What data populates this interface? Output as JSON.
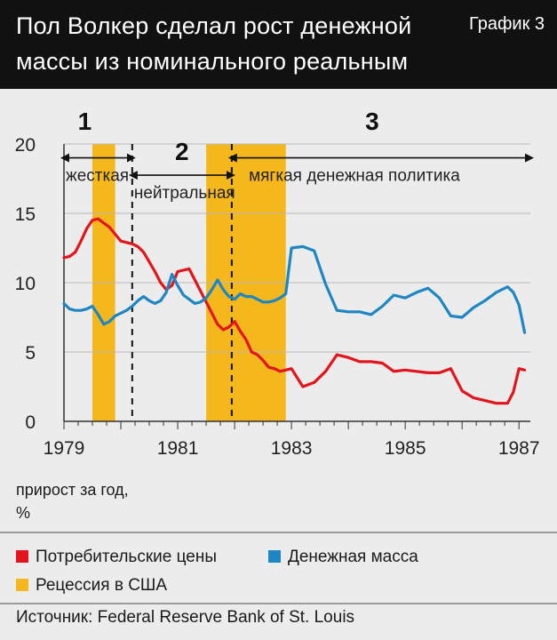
{
  "header": {
    "title_line1": "Пол Волкер сделал рост денежной",
    "title_line2": "массы из номинального реальным",
    "badge": "График 3"
  },
  "unit_label_line1": "прирост за год,",
  "unit_label_line2": "%",
  "legend": {
    "cpi": "Потребительские цены",
    "money": "Денежная масса",
    "recession": "Рецессия в США"
  },
  "source": "Источник: Federal Reserve Bank of St. Louis",
  "colors": {
    "cpi": "#e3141b",
    "money": "#1f86c4",
    "recession": "#f5b81c",
    "header_bg": "#111111",
    "page_bg": "#ececec"
  },
  "chart_data": {
    "type": "line",
    "xlim": [
      1979,
      1987.2
    ],
    "ylim": [
      0,
      20
    ],
    "xticks": [
      "1979",
      "1981",
      "1983",
      "1985",
      "1987"
    ],
    "yticks": [
      "0",
      "5",
      "10",
      "15",
      "20"
    ],
    "grid": true,
    "recessions": [
      [
        1979.5,
        1979.9
      ],
      [
        1981.5,
        1982.9
      ]
    ],
    "periods": [
      {
        "number": "1",
        "label": "жесткая",
        "start": 1979,
        "end": 1980.2
      },
      {
        "number": "2",
        "label": "нейтральная",
        "start": 1980.2,
        "end": 1981.95
      },
      {
        "number": "3",
        "label": "мягкая денежная политика",
        "start": 1981.95,
        "end": 1987.2
      }
    ],
    "series": [
      {
        "name": "Потребительские цены",
        "x": [
          1979.0,
          1979.1,
          1979.2,
          1979.3,
          1979.4,
          1979.5,
          1979.6,
          1979.7,
          1979.8,
          1979.9,
          1980.0,
          1980.1,
          1980.2,
          1980.3,
          1980.4,
          1980.5,
          1980.6,
          1980.7,
          1980.8,
          1980.9,
          1981.0,
          1981.1,
          1981.2,
          1981.3,
          1981.4,
          1981.5,
          1981.6,
          1981.7,
          1981.8,
          1981.9,
          1982.0,
          1982.1,
          1982.2,
          1982.3,
          1982.4,
          1982.5,
          1982.6,
          1982.7,
          1982.8,
          1982.9,
          1983.0,
          1983.2,
          1983.4,
          1983.6,
          1983.8,
          1984.0,
          1984.2,
          1984.4,
          1984.6,
          1984.8,
          1985.0,
          1985.2,
          1985.4,
          1985.6,
          1985.8,
          1986.0,
          1986.2,
          1986.4,
          1986.6,
          1986.8,
          1986.9,
          1987.0,
          1987.1
        ],
        "values": [
          11.8,
          11.9,
          12.2,
          13.0,
          13.9,
          14.5,
          14.6,
          14.3,
          14.0,
          13.5,
          13.0,
          12.9,
          12.8,
          12.6,
          12.2,
          11.5,
          10.8,
          10.0,
          9.5,
          9.8,
          10.8,
          10.9,
          11.0,
          10.2,
          9.4,
          8.6,
          7.8,
          7.0,
          6.6,
          6.8,
          7.2,
          6.5,
          5.9,
          5.0,
          4.8,
          4.4,
          3.9,
          3.8,
          3.6,
          3.7,
          3.8,
          2.5,
          2.8,
          3.6,
          4.8,
          4.6,
          4.3,
          4.3,
          4.2,
          3.6,
          3.7,
          3.6,
          3.5,
          3.5,
          3.8,
          2.2,
          1.7,
          1.5,
          1.3,
          1.3,
          2.1,
          3.8,
          3.7
        ]
      },
      {
        "name": "Денежная масса",
        "x": [
          1979.0,
          1979.1,
          1979.2,
          1979.3,
          1979.4,
          1979.5,
          1979.6,
          1979.7,
          1979.8,
          1979.9,
          1980.0,
          1980.1,
          1980.2,
          1980.3,
          1980.4,
          1980.5,
          1980.6,
          1980.7,
          1980.8,
          1980.9,
          1981.0,
          1981.1,
          1981.2,
          1981.3,
          1981.4,
          1981.5,
          1981.6,
          1981.7,
          1981.8,
          1981.9,
          1982.0,
          1982.1,
          1982.2,
          1982.3,
          1982.4,
          1982.5,
          1982.6,
          1982.7,
          1982.8,
          1982.9,
          1983.0,
          1983.2,
          1983.4,
          1983.6,
          1983.8,
          1984.0,
          1984.2,
          1984.4,
          1984.6,
          1984.8,
          1985.0,
          1985.2,
          1985.4,
          1985.6,
          1985.8,
          1986.0,
          1986.2,
          1986.4,
          1986.6,
          1986.8,
          1986.9,
          1987.0,
          1987.1
        ],
        "values": [
          8.5,
          8.1,
          8.0,
          8.0,
          8.1,
          8.3,
          7.7,
          7.0,
          7.2,
          7.6,
          7.8,
          8.0,
          8.3,
          8.7,
          9.0,
          8.7,
          8.5,
          8.7,
          9.3,
          10.6,
          9.8,
          9.1,
          8.8,
          8.5,
          8.6,
          8.9,
          9.5,
          10.2,
          9.5,
          9.0,
          8.8,
          9.2,
          9.0,
          9.0,
          8.8,
          8.6,
          8.6,
          8.7,
          8.9,
          9.2,
          12.5,
          12.6,
          12.3,
          9.9,
          8.0,
          7.9,
          7.9,
          7.7,
          8.3,
          9.1,
          8.9,
          9.3,
          9.6,
          8.9,
          7.6,
          7.5,
          8.2,
          8.7,
          9.3,
          9.7,
          9.3,
          8.4,
          6.4
        ]
      }
    ]
  }
}
